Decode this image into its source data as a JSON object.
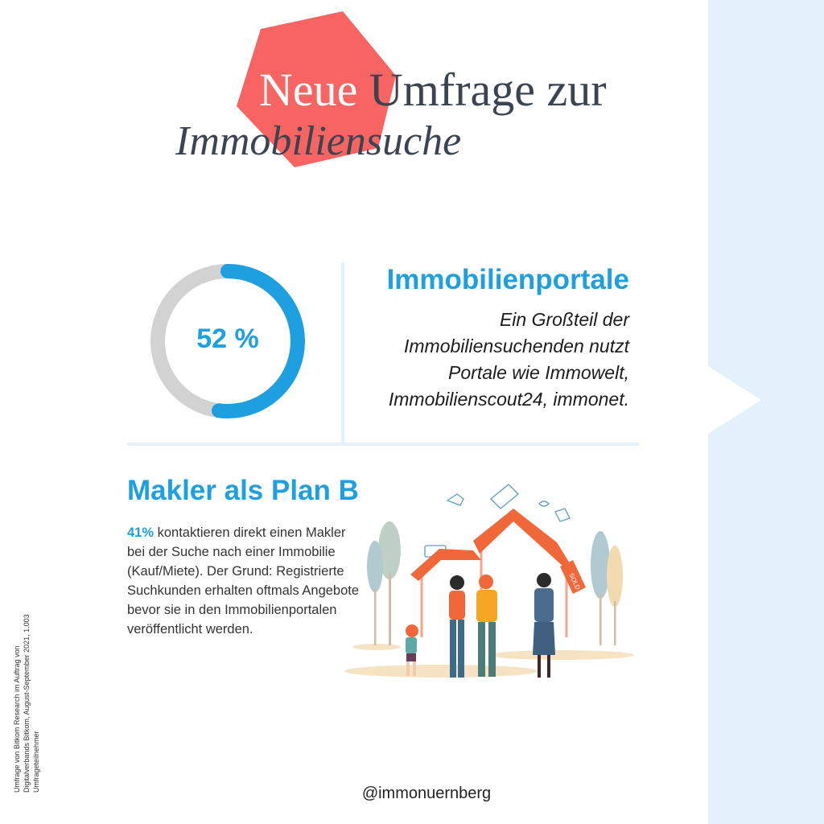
{
  "title": {
    "line1_highlight": "Neue",
    "line1_rest": " Umfrage zur",
    "line2": "Immobiliensuche"
  },
  "stat": {
    "value": 52,
    "label": "52 %",
    "heading": "Immobilienportale",
    "text": "Ein Großteil der Immobiliensuchenden nutzt Portale wie Immowelt, Immobilienscout24, immonet."
  },
  "makler": {
    "heading": "Makler als Plan B",
    "percent": "41%",
    "text": " kontaktieren direkt einen Makler bei der Suche nach einer Immobilie (Kauf/Miete). Der Grund: Registrierte Suchkunden erhalten oftmals Angebote bevor sie in den Immobilienportalen veröffentlicht werden.",
    "sold_tag": "SOLD"
  },
  "footnote": "Umfrage von Bitkom Research im Auftrag von Digitalverbands Bitkom, August-September 2021, 1.003 Umfrageteilnehmer",
  "handle": "@immonuernberg",
  "colors": {
    "accent_blue": "#1ea0e0",
    "coral": "#f86462",
    "ring_gray": "#d2d2d2",
    "panel_blue": "#e3f1fa",
    "title_dark": "#3b4450"
  }
}
